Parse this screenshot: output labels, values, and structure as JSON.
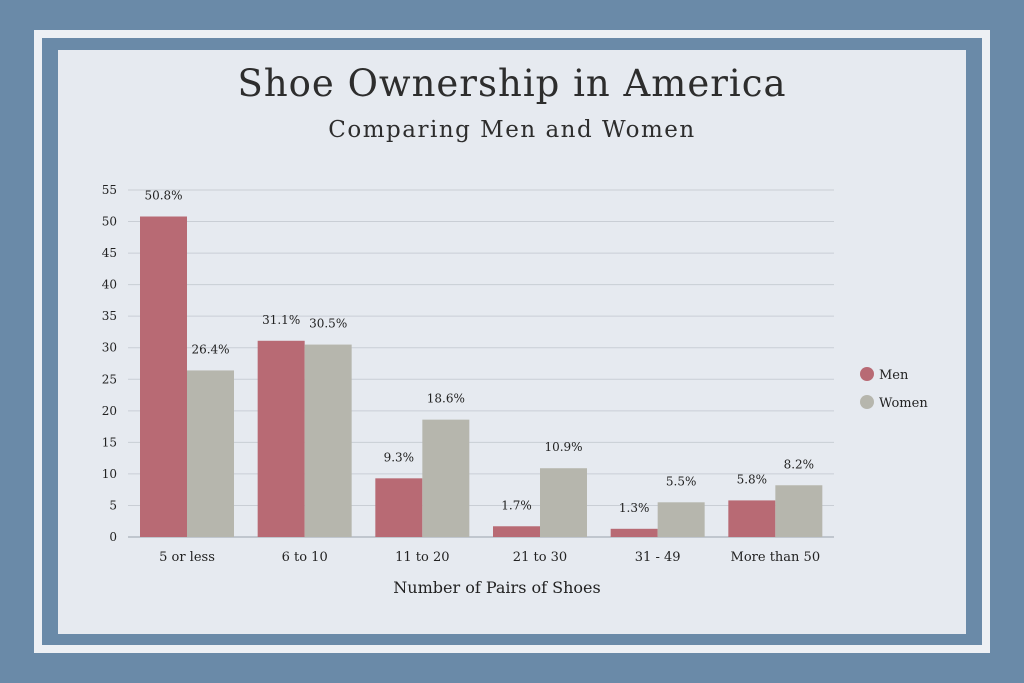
{
  "chart_data": {
    "type": "bar",
    "title": "Shoe Ownership in America",
    "subtitle": "Comparing Men and Women",
    "xlabel": "Number of Pairs of Shoes",
    "ylabel": "",
    "ylim": [
      0,
      55
    ],
    "yticks": [
      0,
      5,
      10,
      15,
      20,
      25,
      30,
      35,
      40,
      45,
      50,
      55
    ],
    "grid": true,
    "legend_position": "right",
    "categories": [
      "5 or less",
      "6 to 10",
      "11 to 20",
      "21 to 30",
      "31 - 49",
      "More than 50"
    ],
    "series": [
      {
        "name": "Men",
        "color": "#b86a74",
        "values": [
          50.8,
          31.1,
          9.3,
          1.7,
          1.3,
          5.8
        ],
        "labels": [
          "50.8%",
          "31.1%",
          "9.3%",
          "1.7%",
          "1.3%",
          "5.8%"
        ]
      },
      {
        "name": "Women",
        "color": "#b6b6ad",
        "values": [
          26.4,
          30.5,
          18.6,
          10.9,
          5.5,
          8.2
        ],
        "labels": [
          "26.4%",
          "30.5%",
          "18.6%",
          "10.9%",
          "5.5%",
          "8.2%"
        ]
      }
    ]
  }
}
